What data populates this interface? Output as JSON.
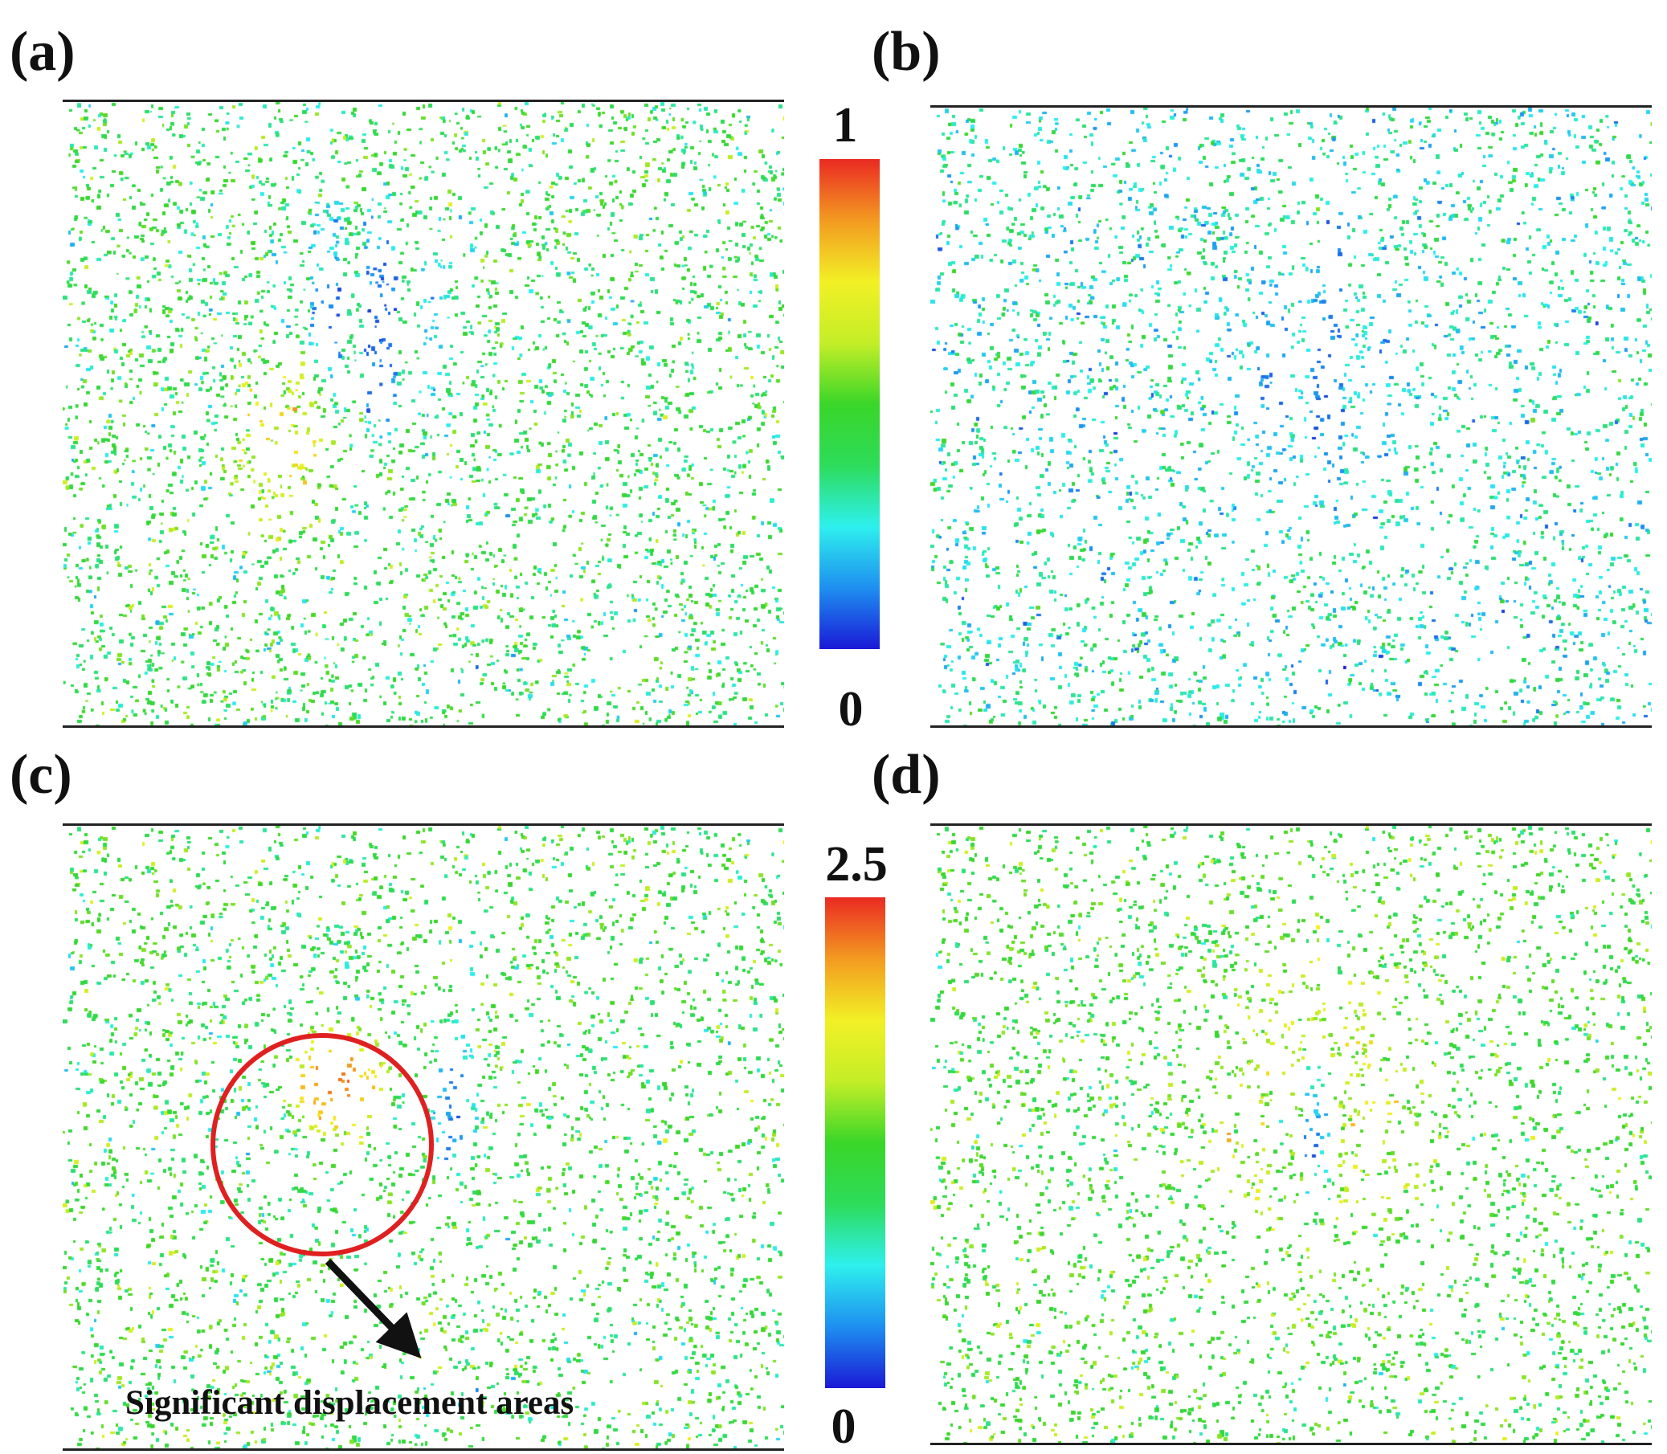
{
  "panels": {
    "a": {
      "label": "(a)"
    },
    "b": {
      "label": "(b)"
    },
    "c": {
      "label": "(c)"
    },
    "d": {
      "label": "(d)"
    }
  },
  "colorbar_top": {
    "max": "1",
    "min": "0"
  },
  "colorbar_bottom": {
    "max": "2.5",
    "min": "0"
  },
  "colormap": [
    "#1a1ad6",
    "#1e8ff0",
    "#2ef0ee",
    "#2ddc5a",
    "#3ad629",
    "#c4ee27",
    "#f2f025",
    "#f39a21",
    "#ea2a22"
  ],
  "annotation": {
    "text": "Significant displacement areas",
    "circle_color": "#e02020",
    "arrow_color": "#111111"
  }
}
